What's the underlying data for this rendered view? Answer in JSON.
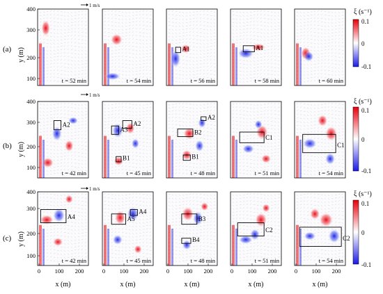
{
  "figure": {
    "row_labels": [
      "(a)",
      "(b)",
      "(c)"
    ],
    "y_axis_label": "y (m)",
    "x_axis_label": "x (m)",
    "y_ticks": [
      "100",
      "200",
      "300",
      "400"
    ],
    "x_ticks": [
      "0",
      "100",
      "200"
    ],
    "scale_arrow_label": "1 m/s",
    "colorbar": {
      "label": "ξ (s⁻¹)",
      "tick_labels": [
        "0.1",
        "0",
        "-0.1"
      ],
      "colors": {
        "positive": "#e8000b",
        "zero": "#ffffff",
        "negative": "#1a1ae6"
      }
    },
    "rows": [
      {
        "panels": [
          {
            "time": "t = 52 min",
            "boxes": []
          },
          {
            "time": "t = 54 min",
            "boxes": []
          },
          {
            "time": "t = 56 min",
            "boxes": [
              "A1"
            ]
          },
          {
            "time": "t = 58 min",
            "boxes": [
              "A1"
            ]
          },
          {
            "time": "t = 60 min",
            "boxes": []
          }
        ]
      },
      {
        "panels": [
          {
            "time": "t = 42 min",
            "boxes": [
              "A2"
            ]
          },
          {
            "time": "t = 45 min",
            "boxes": [
              "A2",
              "A3",
              "B1"
            ]
          },
          {
            "time": "t = 48 min",
            "boxes": [
              "A2",
              "B2",
              "B1"
            ]
          },
          {
            "time": "t = 51 min",
            "boxes": [
              "C1"
            ]
          },
          {
            "time": "t = 54 min",
            "boxes": [
              "C1"
            ]
          }
        ]
      },
      {
        "panels": [
          {
            "time": "t = 42 min",
            "boxes": [
              "A4"
            ]
          },
          {
            "time": "t = 45 min",
            "boxes": [
              "A4",
              "A5"
            ]
          },
          {
            "time": "t = 48 min",
            "boxes": [
              "B3",
              "B4"
            ]
          },
          {
            "time": "t = 51 min",
            "boxes": [
              "C2"
            ]
          },
          {
            "time": "t = 54 min",
            "boxes": [
              "C2"
            ]
          }
        ]
      }
    ]
  }
}
